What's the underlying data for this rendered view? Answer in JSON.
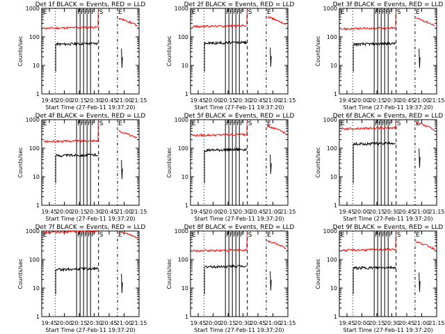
{
  "colors": {
    "events": "#000000",
    "lld": "#ff0000",
    "axis": "#000000",
    "background": "#ffffff"
  },
  "shared": {
    "ylabel": "Counts/sec",
    "xlabel": "Start Time (27-Feb-11 19:37:20)",
    "x_ticks": [
      "19:45",
      "20:00",
      "20:15",
      "20:30",
      "20:45",
      "21:00",
      "21:15"
    ],
    "y_ticks": [
      "1",
      "10",
      "100",
      "1000"
    ],
    "marker_labels": {
      "flare": "F",
      "saa_start": "S",
      "saa_end": "E",
      "eclipse_start": "E"
    }
  },
  "chart_data": [
    {
      "type": "line",
      "title": "Det 1f BLACK = Events, RED = LLD",
      "yscale": "log",
      "ylim": [
        1,
        1000
      ],
      "series": [
        {
          "color": "#000000",
          "values_approx": [
            55,
            80
          ]
        },
        {
          "color": "#ff0000",
          "values_approx": [
            200,
            450
          ]
        }
      ]
    },
    {
      "type": "line",
      "title": "Det 2f BLACK = Events, RED = LLD",
      "yscale": "log",
      "ylim": [
        1,
        1000
      ],
      "series": [
        {
          "color": "#000000",
          "values_approx": [
            60,
            85
          ]
        },
        {
          "color": "#ff0000",
          "values_approx": [
            230,
            500
          ]
        }
      ]
    },
    {
      "type": "line",
      "title": "Det 3f BLACK = Events, RED = LLD",
      "yscale": "log",
      "ylim": [
        1,
        1000
      ],
      "series": [
        {
          "color": "#000000",
          "values_approx": [
            55,
            80
          ]
        },
        {
          "color": "#ff0000",
          "values_approx": [
            190,
            450
          ]
        }
      ]
    },
    {
      "type": "line",
      "title": "Det 4f BLACK = Events, RED = LLD",
      "yscale": "log",
      "ylim": [
        1,
        1000
      ],
      "series": [
        {
          "color": "#000000",
          "values_approx": [
            55,
            80
          ]
        },
        {
          "color": "#ff0000",
          "values_approx": [
            170,
            400
          ]
        }
      ]
    },
    {
      "type": "line",
      "title": "Det 5f BLACK = Events, RED = LLD",
      "yscale": "log",
      "ylim": [
        1,
        1000
      ],
      "series": [
        {
          "color": "#000000",
          "values_approx": [
            85,
            120
          ]
        },
        {
          "color": "#ff0000",
          "values_approx": [
            280,
            600
          ]
        }
      ]
    },
    {
      "type": "line",
      "title": "Det 6f BLACK = Events, RED = LLD",
      "yscale": "log",
      "ylim": [
        1,
        1000
      ],
      "series": [
        {
          "color": "#000000",
          "values_approx": [
            140,
            200
          ]
        },
        {
          "color": "#ff0000",
          "values_approx": [
            480,
            800
          ]
        }
      ]
    },
    {
      "type": "line",
      "title": "Det 7f BLACK = Events, RED = LLD",
      "yscale": "log",
      "ylim": [
        1,
        1000
      ],
      "series": [
        {
          "color": "#000000",
          "values_approx": [
            45,
            70
          ]
        },
        {
          "color": "#ff0000",
          "values_approx": [
            900,
            1000
          ]
        }
      ]
    },
    {
      "type": "line",
      "title": "Det 8f BLACK = Events, RED = LLD",
      "yscale": "log",
      "ylim": [
        1,
        1000
      ],
      "series": [
        {
          "color": "#000000",
          "values_approx": [
            55,
            80
          ]
        },
        {
          "color": "#ff0000",
          "values_approx": [
            200,
            450
          ]
        }
      ]
    },
    {
      "type": "line",
      "title": "Det 9f BLACK = Events, RED = LLD",
      "yscale": "log",
      "ylim": [
        1,
        1000
      ],
      "series": [
        {
          "color": "#000000",
          "values_approx": [
            50,
            75
          ]
        },
        {
          "color": "#ff0000",
          "values_approx": [
            210,
            420
          ]
        }
      ]
    }
  ]
}
